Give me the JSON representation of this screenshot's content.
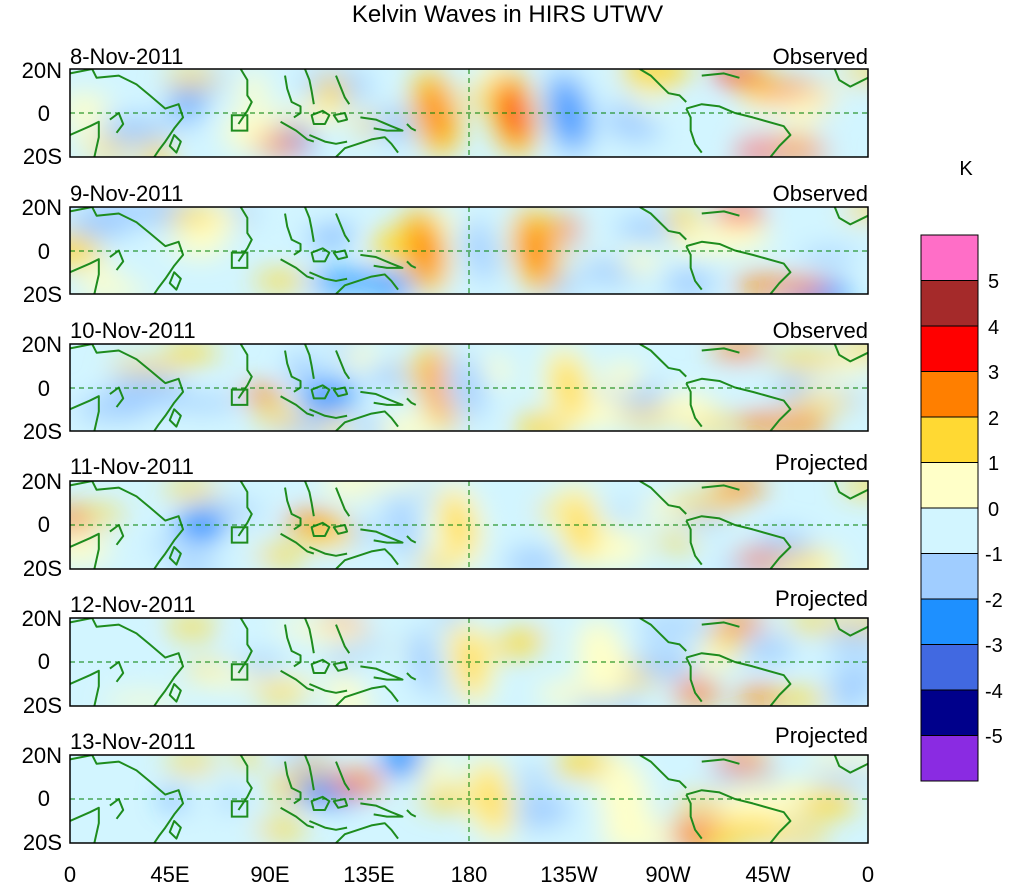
{
  "title": "Kelvin Waves in HIRS UTWV",
  "panels": [
    {
      "date": "8-Nov-2011",
      "status": "Observed"
    },
    {
      "date": "9-Nov-2011",
      "status": "Observed"
    },
    {
      "date": "10-Nov-2011",
      "status": "Observed"
    },
    {
      "date": "11-Nov-2011",
      "status": "Projected"
    },
    {
      "date": "12-Nov-2011",
      "status": "Projected"
    },
    {
      "date": "13-Nov-2011",
      "status": "Projected"
    }
  ],
  "lat_labels": [
    "20N",
    "0",
    "20S"
  ],
  "lon_labels": [
    "0",
    "45E",
    "90E",
    "135E",
    "180",
    "135W",
    "90W",
    "45W",
    "0"
  ],
  "colorbar": {
    "unit": "K",
    "labels": [
      "5",
      "4",
      "3",
      "2",
      "1",
      "0",
      "-1",
      "-2",
      "-3",
      "-4",
      "-5"
    ],
    "colors": [
      "#ff6ec7",
      "#a52a2a",
      "#ff0000",
      "#ff7f00",
      "#ffd933",
      "#ffffc8",
      "#d2f5ff",
      "#a0cdff",
      "#1e90ff",
      "#4169e1",
      "#00008b",
      "#8a2be2"
    ]
  },
  "wave_bands": [
    {
      "panel": 0,
      "lon": 200,
      "sign": 1,
      "amp": 3.0
    },
    {
      "panel": 0,
      "lon": 165,
      "sign": 1,
      "amp": 2.5
    },
    {
      "panel": 0,
      "lon": 225,
      "sign": -1,
      "amp": 2.5
    },
    {
      "panel": 1,
      "lon": 160,
      "sign": 1,
      "amp": 2.5
    },
    {
      "panel": 1,
      "lon": 210,
      "sign": 1,
      "amp": 2.0
    },
    {
      "panel": 1,
      "lon": 185,
      "sign": -1,
      "amp": 2.0
    },
    {
      "panel": 2,
      "lon": 168,
      "sign": 1,
      "amp": 2.5
    },
    {
      "panel": 2,
      "lon": 225,
      "sign": 1,
      "amp": 1.5
    },
    {
      "panel": 2,
      "lon": 180,
      "sign": -1,
      "amp": 1.5
    },
    {
      "panel": 3,
      "lon": 175,
      "sign": 1,
      "amp": 1.5
    },
    {
      "panel": 3,
      "lon": 230,
      "sign": 1,
      "amp": 1.0
    },
    {
      "panel": 3,
      "lon": 150,
      "sign": -1,
      "amp": 1.5
    },
    {
      "panel": 4,
      "lon": 180,
      "sign": 1,
      "amp": 1.2
    },
    {
      "panel": 4,
      "lon": 240,
      "sign": 1,
      "amp": 0.8
    },
    {
      "panel": 4,
      "lon": 160,
      "sign": -1,
      "amp": 1.5
    },
    {
      "panel": 5,
      "lon": 190,
      "sign": 1,
      "amp": 1.0
    },
    {
      "panel": 5,
      "lon": 250,
      "sign": 1,
      "amp": 0.8
    }
  ]
}
